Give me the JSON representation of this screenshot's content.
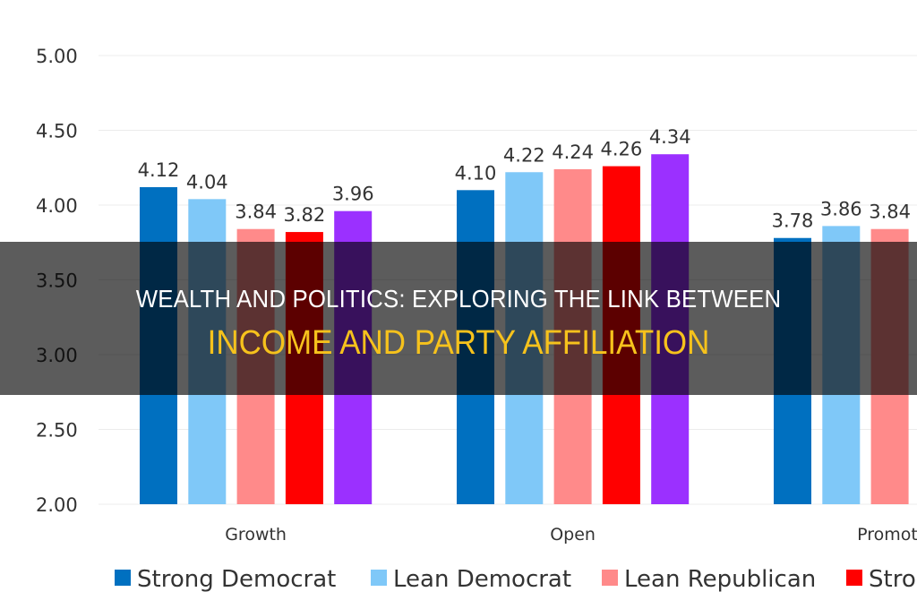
{
  "overlay": {
    "title_line1": "WEALTH AND POLITICS: EXPLORING THE LINK BETWEEN",
    "title_line2": "INCOME AND PARTY AFFILIATION"
  },
  "chart_data": {
    "type": "bar",
    "categories": [
      "Growth",
      "Open",
      "Promotion"
    ],
    "category_labels_shown": [
      "Growth",
      "Open",
      "Promoti"
    ],
    "ylim": [
      2.0,
      5.0
    ],
    "yticks": [
      "2.00",
      "2.50",
      "3.00",
      "3.50",
      "4.00",
      "4.50",
      "5.00"
    ],
    "grid": true,
    "legend_position": "bottom",
    "series": [
      {
        "name": "Strong Democrat",
        "color": "#0070c0",
        "values": [
          4.12,
          4.1,
          3.78
        ]
      },
      {
        "name": "Lean Democrat",
        "color": "#7fc8f8",
        "values": [
          4.04,
          4.22,
          3.86
        ]
      },
      {
        "name": "Lean Republican",
        "color": "#ff8a8a",
        "values": [
          3.84,
          4.24,
          3.84
        ]
      },
      {
        "name": "Stro",
        "color": "#ff0000",
        "values": [
          3.82,
          4.26,
          null
        ]
      },
      {
        "color": "#9b30ff",
        "values": [
          3.96,
          4.34,
          null
        ]
      }
    ]
  }
}
